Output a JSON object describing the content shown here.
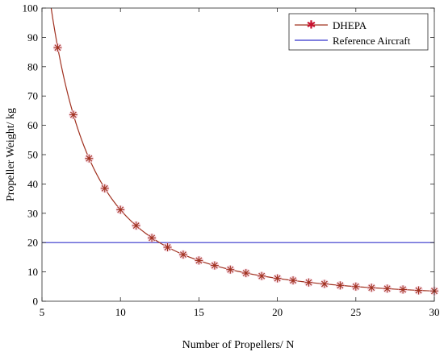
{
  "chart_data": {
    "type": "line",
    "title": "",
    "xlabel": "Number of Propellers/ N",
    "ylabel": "Propeller Weight/ kg",
    "xlim": [
      5,
      30
    ],
    "ylim": [
      0,
      100
    ],
    "xticks": [
      5,
      10,
      15,
      20,
      25,
      30
    ],
    "yticks": [
      0,
      10,
      20,
      30,
      40,
      50,
      60,
      70,
      80,
      90,
      100
    ],
    "grid": false,
    "legend_position": "top-right",
    "series": [
      {
        "name": "DHEPA",
        "style": "line-with-star-markers",
        "color": "#a0301f",
        "marker_color": "#c8102e",
        "x": [
          6,
          7,
          8,
          9,
          10,
          11,
          12,
          13,
          14,
          15,
          16,
          17,
          18,
          19,
          20,
          21,
          22,
          23,
          24,
          25,
          26,
          27,
          28,
          29,
          30
        ],
        "y": [
          86.5,
          63.6,
          48.7,
          38.5,
          31.2,
          25.8,
          21.6,
          18.4,
          15.9,
          13.9,
          12.2,
          10.8,
          9.6,
          8.6,
          7.8,
          7.1,
          6.4,
          5.9,
          5.4,
          5.0,
          4.6,
          4.3,
          4.0,
          3.7,
          3.5
        ]
      },
      {
        "name": "Reference Aircraft",
        "style": "line",
        "color": "#3333cc",
        "x": [
          5,
          30
        ],
        "y": [
          20,
          20
        ]
      }
    ]
  }
}
